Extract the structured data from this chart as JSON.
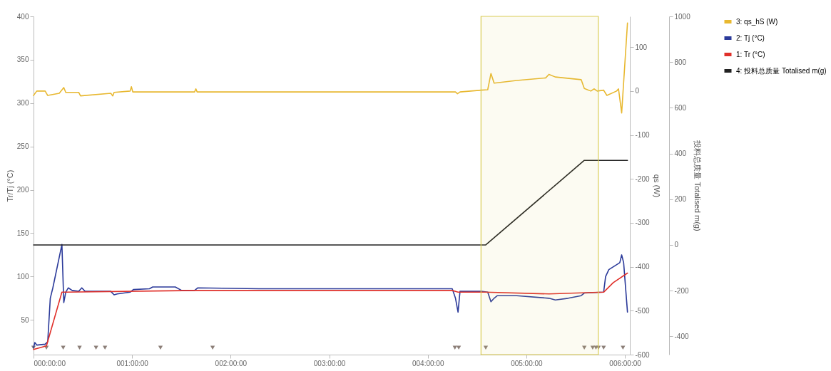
{
  "chart_data": {
    "type": "line",
    "ylabel": "Tr/Tj (°C)",
    "y2label": "qs (W)",
    "y3label": "投料总质量 Totalised m(g)",
    "xlim": [
      0,
      6.05
    ],
    "xticks": [
      {
        "value": 0,
        "label": "000:00:00"
      },
      {
        "value": 1,
        "label": "001:00:00"
      },
      {
        "value": 2,
        "label": "002:00:00"
      },
      {
        "value": 3,
        "label": "003:00:00"
      },
      {
        "value": 4,
        "label": "004:00:00"
      },
      {
        "value": 5,
        "label": "005:00:00"
      },
      {
        "value": 6,
        "label": "006:00:00"
      }
    ],
    "ylim": [
      10,
      400
    ],
    "yticks": [
      50,
      100,
      150,
      200,
      250,
      300,
      350,
      400
    ],
    "y2lim": [
      -600,
      170
    ],
    "y2ticks": [
      -600,
      -500,
      -400,
      -300,
      -200,
      -100,
      0,
      100
    ],
    "y3lim": [
      -480,
      1000
    ],
    "y3ticks": [
      -400,
      -200,
      0,
      200,
      400,
      600,
      800,
      1000
    ],
    "grid": false,
    "legend": "right",
    "marker": "none",
    "line_style": "solid",
    "bands": [
      {
        "axis": "x",
        "from": 4.54,
        "to": 5.73,
        "color": "#d9cc55"
      }
    ],
    "series": [
      {
        "name": "3: qs_hS (W)",
        "color": "#e8b830",
        "axis": "y2",
        "x": [
          0,
          0.033,
          0.118,
          0.144,
          0.261,
          0.307,
          0.327,
          0.458,
          0.477,
          0.784,
          0.804,
          0.817,
          0.98,
          0.993,
          1.007,
          1.634,
          1.647,
          1.66,
          4.281,
          4.301,
          4.327,
          4.542,
          4.608,
          4.641,
          4.673,
          4.902,
          5.196,
          5.229,
          5.294,
          5.556,
          5.588,
          5.654,
          5.686,
          5.719,
          5.784,
          5.817,
          5.915,
          5.935,
          5.967,
          6.026
        ],
        "values": [
          -10,
          0,
          0,
          -10,
          -5,
          8,
          -3,
          -3,
          -11,
          -5,
          -11,
          -3,
          0,
          10,
          -2,
          -2,
          5,
          -2,
          -2,
          -6,
          -2,
          2,
          3,
          40,
          18,
          24,
          30,
          38,
          32,
          26,
          6,
          0,
          5,
          0,
          2,
          -10,
          0,
          5,
          -50,
          155
        ]
      },
      {
        "name": "2: Tj (°C)",
        "color": "#2b3a9a",
        "axis": "y",
        "x": [
          0,
          0.013,
          0.033,
          0.118,
          0.144,
          0.17,
          0.196,
          0.288,
          0.307,
          0.327,
          0.353,
          0.392,
          0.458,
          0.49,
          0.523,
          0.784,
          0.817,
          0.85,
          0.98,
          1.013,
          1.176,
          1.209,
          1.438,
          1.503,
          1.634,
          1.667,
          2.288,
          4.248,
          4.281,
          4.307,
          4.327,
          4.542,
          4.608,
          4.641,
          4.673,
          4.706,
          4.902,
          5.229,
          5.294,
          5.425,
          5.556,
          5.588,
          5.784,
          5.804,
          5.837,
          5.948,
          5.967,
          5.987,
          6.026
        ],
        "values": [
          18,
          24,
          21,
          22,
          25,
          75,
          87,
          137,
          70,
          82,
          87,
          84,
          83,
          87,
          83,
          83,
          79,
          80,
          82,
          85,
          86,
          88,
          88,
          84,
          84,
          87,
          86,
          86,
          75,
          59,
          83,
          83,
          82,
          71,
          75,
          78,
          78,
          75,
          73,
          75,
          78,
          81,
          82,
          100,
          108,
          116,
          125,
          116,
          59
        ]
      },
      {
        "name": "1: Tr (°C)",
        "color": "#e0302a",
        "axis": "y",
        "x": [
          0,
          0.131,
          0.288,
          0.327,
          1.634,
          4.248,
          4.307,
          4.575,
          5.229,
          5.784,
          5.882,
          6.026
        ],
        "values": [
          16,
          20,
          82,
          82,
          84,
          84,
          82,
          82,
          80,
          82,
          93,
          104
        ]
      },
      {
        "name": "4: 投料总质量 Totalised m(g)",
        "color": "#222222",
        "axis": "y3",
        "x": [
          0,
          4.588,
          5.588,
          6.026
        ],
        "values": [
          0,
          0,
          370,
          370
        ]
      },
      {
        "type": "scatter",
        "marker": "triangle",
        "color": "#8c7f78",
        "axis": "y",
        "x": [
          0,
          0.131,
          0.301,
          0.467,
          0.634,
          0.725,
          1.288,
          1.817,
          4.275,
          4.314,
          4.588,
          5.588,
          5.673,
          5.706,
          5.732,
          5.784,
          5.98
        ],
        "values": [
          18,
          18,
          18,
          18,
          18,
          18,
          18,
          18,
          18,
          18,
          18,
          18,
          18,
          18,
          18,
          18,
          18
        ]
      }
    ]
  }
}
